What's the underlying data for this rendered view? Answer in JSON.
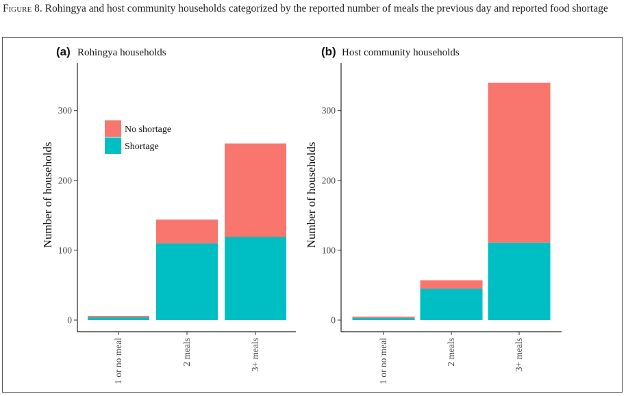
{
  "caption": {
    "label": "Figure 8.",
    "text": " Rohingya and host community households categorized by the reported number of meals the previous day and reported food shortage"
  },
  "colors": {
    "no_shortage": "#F8766D",
    "shortage": "#00BFC4"
  },
  "chart_data": [
    {
      "type": "bar",
      "stacked": true,
      "tag": "(a)",
      "title": "Rohingya households",
      "xlabel": "",
      "ylabel": "Number of households",
      "categories": [
        "1 or no meal",
        "2 meals",
        "3+ meals"
      ],
      "series": [
        {
          "name": "Shortage",
          "values": [
            4,
            110,
            119
          ]
        },
        {
          "name": "No shortage",
          "values": [
            2,
            34,
            134
          ]
        }
      ],
      "yticks": [
        0,
        100,
        200,
        300
      ],
      "ylim": [
        0,
        350
      ],
      "legend": {
        "position": "top-left",
        "items": [
          "No shortage",
          "Shortage"
        ]
      }
    },
    {
      "type": "bar",
      "stacked": true,
      "tag": "(b)",
      "title": "Host community households",
      "xlabel": "",
      "ylabel": "Number of households",
      "categories": [
        "1 or no meal",
        "2 meals",
        "3+ meals"
      ],
      "series": [
        {
          "name": "Shortage",
          "values": [
            3,
            45,
            111
          ]
        },
        {
          "name": "No shortage",
          "values": [
            2,
            12,
            229
          ]
        }
      ],
      "yticks": [
        0,
        100,
        200,
        300
      ],
      "ylim": [
        0,
        350
      ]
    }
  ]
}
